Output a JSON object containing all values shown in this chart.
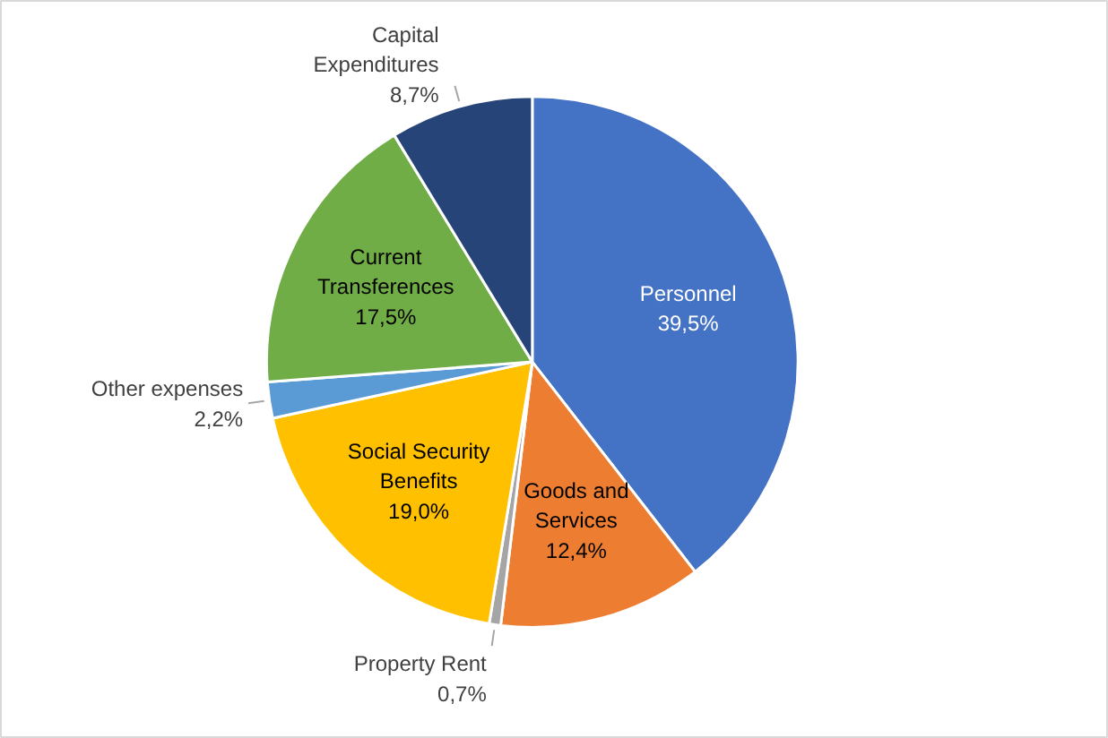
{
  "chart_data": {
    "type": "pie",
    "categories": [
      "Personnel",
      "Goods and Services",
      "Property Rent",
      "Social Security Benefits",
      "Other expenses",
      "Current Transferences",
      "Capital Expenditures"
    ],
    "values": [
      39.5,
      12.4,
      0.7,
      19.0,
      2.2,
      17.5,
      8.7
    ],
    "value_labels": [
      "39,5%",
      "12,4%",
      "0,7%",
      "19,0%",
      "2,2%",
      "17,5%",
      "8,7%"
    ],
    "colors": [
      "#4472c4",
      "#ed7d31",
      "#a5a5a5",
      "#ffc000",
      "#5b9bd5",
      "#70ad47",
      "#264478"
    ],
    "legend": false
  }
}
